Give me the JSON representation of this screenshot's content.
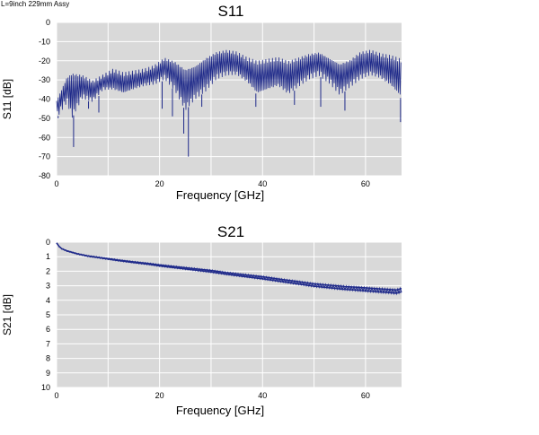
{
  "header_note": "L=9inch 229mm Assy",
  "chart_data": [
    {
      "type": "line",
      "title": "S11",
      "xlabel": "Frequency [GHz]",
      "ylabel": "S11 [dB]",
      "xlim": [
        0,
        67
      ],
      "ylim": [
        -80,
        0
      ],
      "xticks": [
        0,
        20,
        40,
        60
      ],
      "yticks": [
        0,
        -10,
        -20,
        -30,
        -40,
        -50,
        -60,
        -70,
        -80
      ],
      "grid": true,
      "background": "#d9d9d9",
      "line_color": "#1f2a8a",
      "series": [
        {
          "upper_envelope": [
            [
              0,
              -40
            ],
            [
              1,
              -34
            ],
            [
              2,
              -28
            ],
            [
              3,
              -26
            ],
            [
              5,
              -27
            ],
            [
              7,
              -30
            ],
            [
              9,
              -27
            ],
            [
              11,
              -24
            ],
            [
              13,
              -26
            ],
            [
              15,
              -25
            ],
            [
              17,
              -24
            ],
            [
              19,
              -22
            ],
            [
              21,
              -18
            ],
            [
              23,
              -20
            ],
            [
              25,
              -24
            ],
            [
              27,
              -22
            ],
            [
              29,
              -18
            ],
            [
              31,
              -15
            ],
            [
              33,
              -14
            ],
            [
              35,
              -15
            ],
            [
              37,
              -18
            ],
            [
              39,
              -20
            ],
            [
              41,
              -19
            ],
            [
              43,
              -18
            ],
            [
              45,
              -20
            ],
            [
              47,
              -18
            ],
            [
              49,
              -16
            ],
            [
              51,
              -15
            ],
            [
              53,
              -18
            ],
            [
              55,
              -21
            ],
            [
              57,
              -19
            ],
            [
              59,
              -15
            ],
            [
              61,
              -14
            ],
            [
              63,
              -16
            ],
            [
              65,
              -17
            ],
            [
              67,
              -19
            ]
          ],
          "lower_envelope": [
            [
              0,
              -50
            ],
            [
              1,
              -46
            ],
            [
              2,
              -42
            ],
            [
              3,
              -50
            ],
            [
              5,
              -40
            ],
            [
              7,
              -42
            ],
            [
              9,
              -36
            ],
            [
              11,
              -36
            ],
            [
              13,
              -38
            ],
            [
              15,
              -36
            ],
            [
              17,
              -34
            ],
            [
              19,
              -33
            ],
            [
              21,
              -30
            ],
            [
              23,
              -36
            ],
            [
              25,
              -46
            ],
            [
              27,
              -40
            ],
            [
              29,
              -36
            ],
            [
              31,
              -30
            ],
            [
              33,
              -28
            ],
            [
              35,
              -28
            ],
            [
              37,
              -32
            ],
            [
              39,
              -38
            ],
            [
              41,
              -36
            ],
            [
              43,
              -34
            ],
            [
              45,
              -38
            ],
            [
              47,
              -34
            ],
            [
              49,
              -30
            ],
            [
              51,
              -28
            ],
            [
              53,
              -32
            ],
            [
              55,
              -38
            ],
            [
              57,
              -34
            ],
            [
              59,
              -30
            ],
            [
              61,
              -28
            ],
            [
              63,
              -30
            ],
            [
              65,
              -34
            ],
            [
              67,
              -40
            ]
          ],
          "dips": [
            [
              0.3,
              -50
            ],
            [
              3.3,
              -65
            ],
            [
              6.2,
              -45
            ],
            [
              8.2,
              -47
            ],
            [
              20.5,
              -45
            ],
            [
              22.5,
              -49
            ],
            [
              24.7,
              -58
            ],
            [
              25.6,
              -70
            ],
            [
              28.2,
              -44
            ],
            [
              38.7,
              -44
            ],
            [
              46.2,
              -43
            ],
            [
              51.3,
              -44
            ],
            [
              56.0,
              -46
            ],
            [
              66.8,
              -52
            ]
          ]
        }
      ]
    },
    {
      "type": "line",
      "title": "S21",
      "xlabel": "Frequency [GHz]",
      "ylabel": "S21 [dB]",
      "xlim": [
        0,
        67
      ],
      "ylim": [
        0,
        10
      ],
      "y_inverted": true,
      "xticks": [
        0,
        20,
        40,
        60
      ],
      "yticks": [
        0,
        1,
        2,
        3,
        4,
        5,
        6,
        7,
        8,
        9,
        10
      ],
      "grid": true,
      "background": "#d9d9d9",
      "line_color": "#1f2a8a",
      "series": [
        {
          "points": [
            [
              0,
              0.05
            ],
            [
              0.5,
              0.3
            ],
            [
              1,
              0.45
            ],
            [
              2,
              0.6
            ],
            [
              4,
              0.8
            ],
            [
              6,
              0.95
            ],
            [
              8,
              1.05
            ],
            [
              10,
              1.15
            ],
            [
              12,
              1.25
            ],
            [
              15,
              1.38
            ],
            [
              18,
              1.5
            ],
            [
              20,
              1.6
            ],
            [
              22,
              1.68
            ],
            [
              25,
              1.8
            ],
            [
              28,
              1.92
            ],
            [
              30,
              2.0
            ],
            [
              33,
              2.15
            ],
            [
              36,
              2.28
            ],
            [
              40,
              2.45
            ],
            [
              43,
              2.6
            ],
            [
              46,
              2.75
            ],
            [
              50,
              2.95
            ],
            [
              53,
              3.05
            ],
            [
              56,
              3.15
            ],
            [
              59,
              3.22
            ],
            [
              62,
              3.3
            ],
            [
              64,
              3.35
            ],
            [
              66,
              3.4
            ],
            [
              67,
              3.3
            ]
          ],
          "band_halfwidth": 0.12
        }
      ]
    }
  ]
}
